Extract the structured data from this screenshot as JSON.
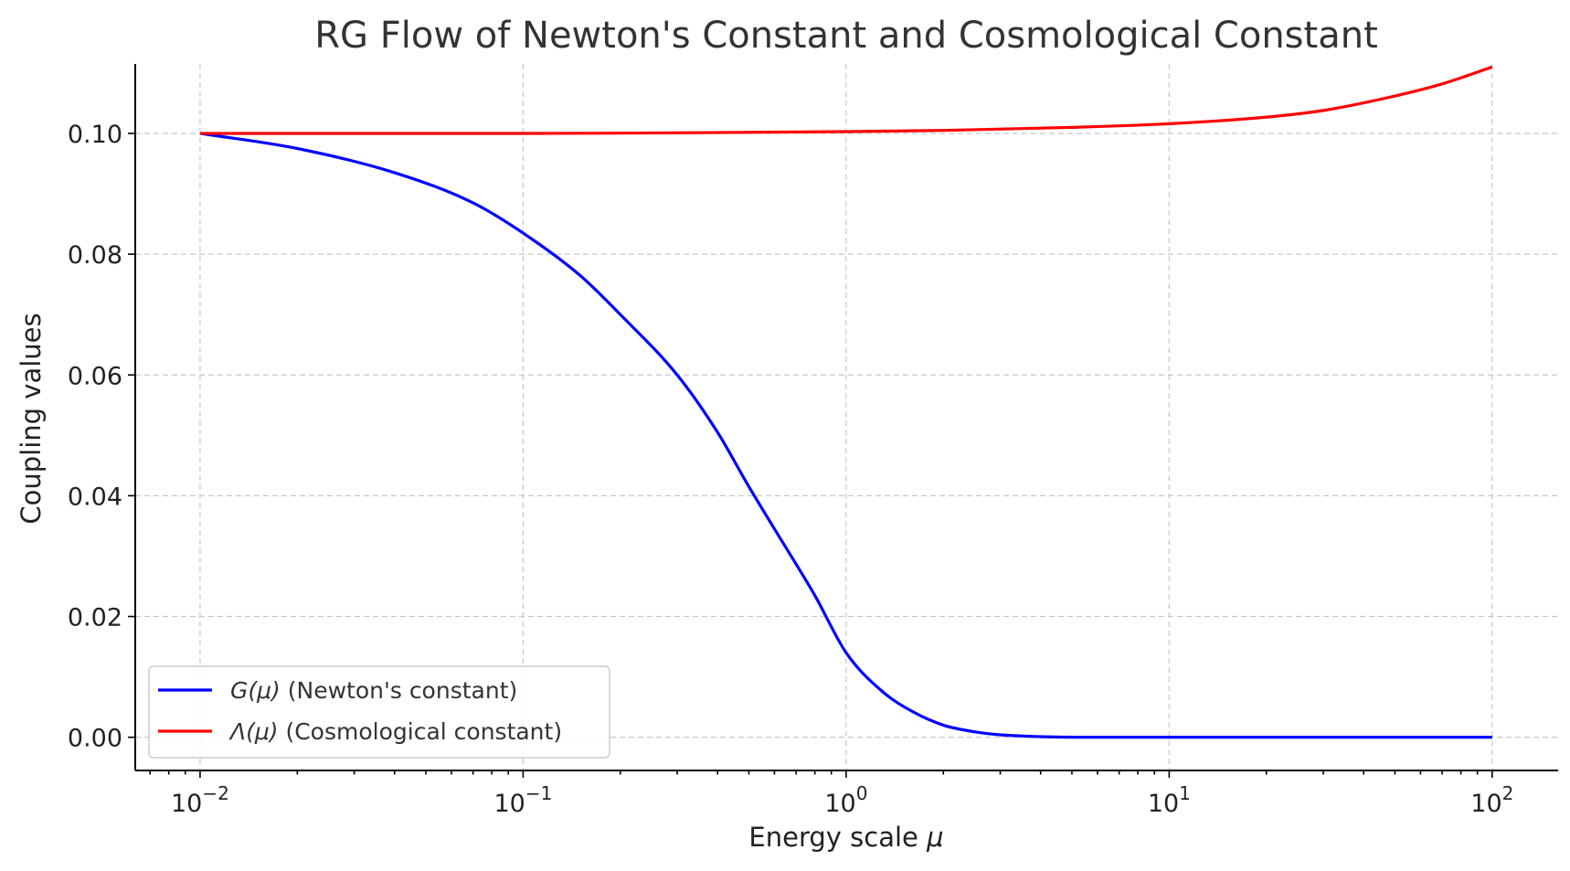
{
  "chart_data": {
    "type": "line",
    "title": "RG Flow of Newton's Constant and Cosmological Constant",
    "xlabel": "Energy scale μ",
    "ylabel": "Coupling values",
    "xscale": "log",
    "xlim": [
      0.0063,
      160
    ],
    "ylim": [
      -0.0055,
      0.1115
    ],
    "xticks": [
      {
        "value": 0.01,
        "base": "10",
        "exp": "−2"
      },
      {
        "value": 0.1,
        "base": "10",
        "exp": "−1"
      },
      {
        "value": 1,
        "base": "10",
        "exp": "0"
      },
      {
        "value": 10,
        "base": "10",
        "exp": "1"
      },
      {
        "value": 100,
        "base": "10",
        "exp": "2"
      }
    ],
    "yticks": [
      {
        "value": 0.0,
        "label": "0.00"
      },
      {
        "value": 0.02,
        "label": "0.02"
      },
      {
        "value": 0.04,
        "label": "0.04"
      },
      {
        "value": 0.06,
        "label": "0.06"
      },
      {
        "value": 0.08,
        "label": "0.08"
      },
      {
        "value": 0.1,
        "label": "0.10"
      }
    ],
    "grid": true,
    "legend_position": "lower-left",
    "series": [
      {
        "name": "G(μ) (Newton's constant)",
        "legend_main": "G(μ)",
        "legend_rest": " (Newton's constant)",
        "color": "#0000ff",
        "x": [
          0.01,
          0.02,
          0.04,
          0.07,
          0.1,
          0.15,
          0.2,
          0.3,
          0.4,
          0.5,
          0.6,
          0.8,
          1.0,
          1.3,
          1.6,
          2.0,
          2.5,
          3.0,
          4.0,
          6.0,
          10,
          20,
          50,
          100
        ],
        "y": [
          0.1,
          0.0975,
          0.0935,
          0.0885,
          0.0835,
          0.0765,
          0.07,
          0.06,
          0.0505,
          0.0415,
          0.0345,
          0.0235,
          0.014,
          0.0075,
          0.0043,
          0.002,
          0.0009,
          0.0004,
          0.0001,
          0.0,
          0.0,
          0.0,
          0.0,
          0.0
        ]
      },
      {
        "name": "Λ(μ) (Cosmological constant)",
        "legend_main": "Λ(μ)",
        "legend_rest": " (Cosmological constant)",
        "color": "#ff0000",
        "x": [
          0.01,
          0.1,
          0.3,
          1,
          2,
          5,
          10,
          20,
          30,
          50,
          70,
          100
        ],
        "y": [
          0.1,
          0.1,
          0.1001,
          0.1003,
          0.1005,
          0.101,
          0.1016,
          0.1027,
          0.1038,
          0.1062,
          0.1082,
          0.111
        ]
      }
    ]
  }
}
